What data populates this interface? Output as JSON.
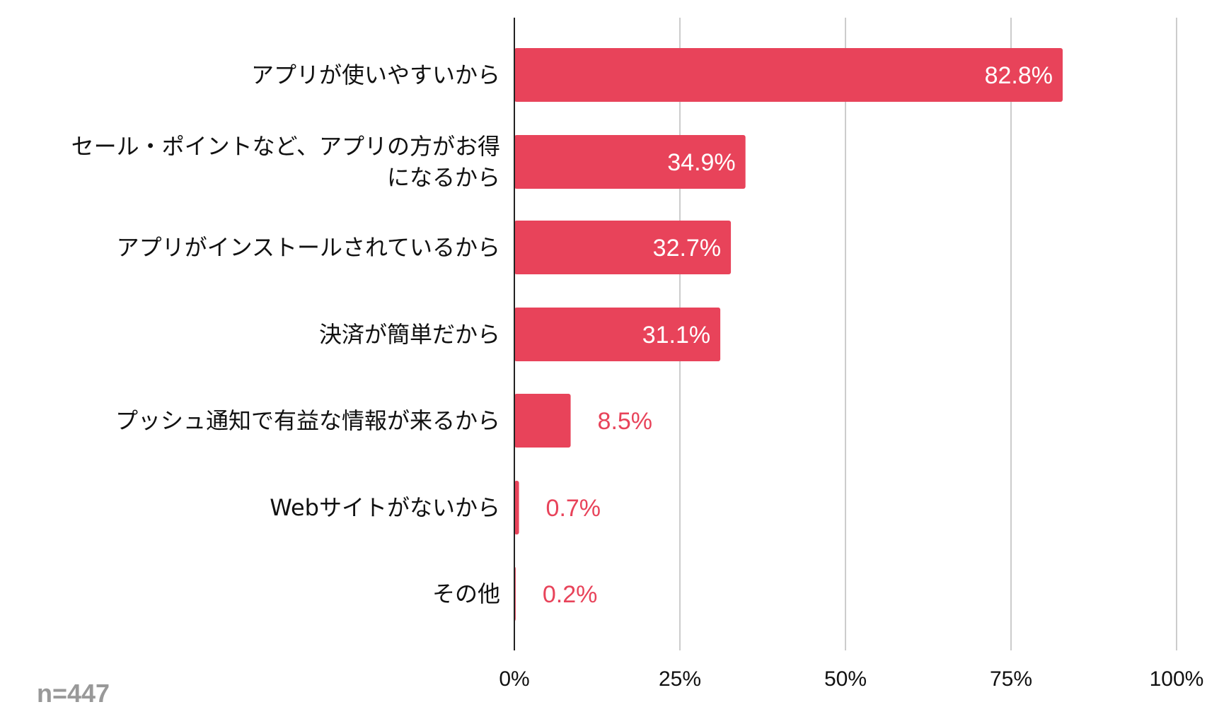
{
  "chart_data": {
    "type": "bar",
    "orientation": "horizontal",
    "categories": [
      [
        "アプリが使いやすいから"
      ],
      [
        "セール・ポイントなど、アプリの方がお得",
        "になるから"
      ],
      [
        "アプリがインストールされているから"
      ],
      [
        "決済が簡単だから"
      ],
      [
        "プッシュ通知で有益な情報が来るから"
      ],
      [
        "Webサイトがないから"
      ],
      [
        "その他"
      ]
    ],
    "values": [
      82.8,
      34.9,
      32.7,
      31.1,
      8.5,
      0.7,
      0.2
    ],
    "value_labels": [
      "82.8%",
      "34.9%",
      "32.7%",
      "31.1%",
      "8.5%",
      "0.7%",
      "0.2%"
    ],
    "xlim": [
      0,
      100
    ],
    "xticks": [
      0,
      25,
      50,
      75,
      100
    ],
    "xtick_labels": [
      "0%",
      "25%",
      "50%",
      "75%",
      "100%"
    ],
    "grid": true,
    "bar_color": "#e8435a",
    "title": "",
    "xlabel": "",
    "ylabel": ""
  },
  "note": "n=447"
}
